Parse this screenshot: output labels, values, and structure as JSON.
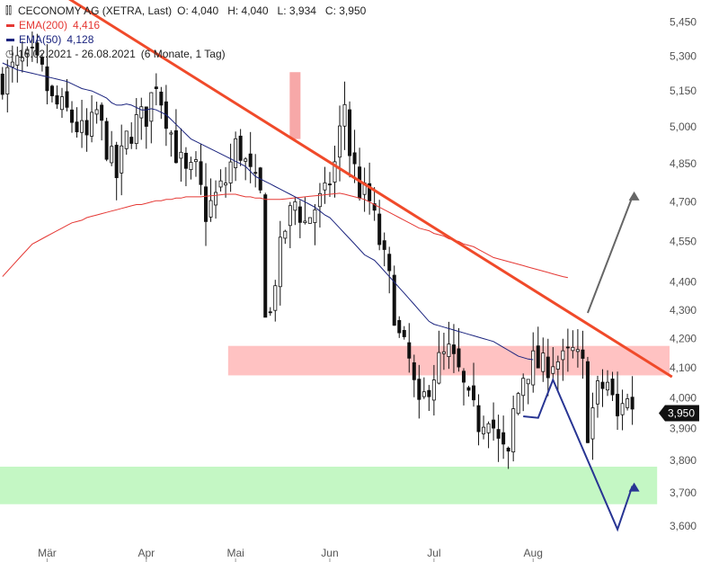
{
  "legend": {
    "title": "CECONOMY AG (XETRA, Last)",
    "ohlc": "O: 4,040   H: 4,040   L: 3,934   C: 3,950",
    "ema200_label": "EMA(200)",
    "ema200_value": "4,416",
    "ema50_label": "EMA(50)",
    "ema50_value": "4,128",
    "period": "16.02.2021 - 26.08.2021",
    "interval": "(6 Monate, 1 Tag)",
    "chart_icon": "candlestick-icon",
    "clock_icon": "clock-icon"
  },
  "colors": {
    "ema200": "#e53935",
    "ema50": "#1a237e",
    "trendline": "#f04a2a",
    "resistance_zone": "#ffc2c2",
    "support_zone": "#c4f7c4",
    "projection_down": "#283593",
    "projection_up": "#666666",
    "badge": "#111111"
  },
  "last_price": "3,950",
  "chart_data": {
    "type": "candlestick",
    "title": "CECONOMY AG (XETRA, Last)",
    "y_ticks": [
      "5,450",
      "5,300",
      "5,150",
      "5,000",
      "4,850",
      "4,700",
      "4,550",
      "4,400",
      "4,300",
      "4,200",
      "4,100",
      "4,000",
      "3,900",
      "3,800",
      "3,700",
      "3,600"
    ],
    "y_tick_values": [
      5.45,
      5.3,
      5.15,
      5.0,
      4.85,
      4.7,
      4.55,
      4.4,
      4.3,
      4.2,
      4.1,
      4.0,
      3.9,
      3.8,
      3.7,
      3.6
    ],
    "y_scale": "log",
    "ylim": [
      3.56,
      5.55
    ],
    "x_ticks": [
      "Mär",
      "Apr",
      "Mai",
      "Jun",
      "Jul",
      "Aug"
    ],
    "x_tick_index": [
      9,
      29,
      47,
      66,
      87,
      107
    ],
    "n_bars": 135,
    "ema200": [
      4.42,
      4.44,
      4.46,
      4.48,
      4.5,
      4.52,
      4.54,
      4.55,
      4.56,
      4.57,
      4.58,
      4.59,
      4.6,
      4.61,
      4.62,
      4.625,
      4.63,
      4.64,
      4.645,
      4.65,
      4.655,
      4.66,
      4.665,
      4.67,
      4.675,
      4.68,
      4.685,
      4.69,
      4.69,
      4.695,
      4.7,
      4.705,
      4.705,
      4.71,
      4.71,
      4.715,
      4.715,
      4.72,
      4.72,
      4.72,
      4.72,
      4.722,
      4.724,
      4.726,
      4.728,
      4.73,
      4.73,
      4.73,
      4.725,
      4.72,
      4.72,
      4.715,
      4.715,
      4.71,
      4.71,
      4.71,
      4.71,
      4.712,
      4.714,
      4.716,
      4.718,
      4.72,
      4.722,
      4.724,
      4.726,
      4.728,
      4.73,
      4.732,
      4.734,
      4.73,
      4.725,
      4.72,
      4.715,
      4.71,
      4.7,
      4.69,
      4.68,
      4.67,
      4.66,
      4.65,
      4.64,
      4.63,
      4.62,
      4.61,
      4.6,
      4.595,
      4.59,
      4.58,
      4.575,
      4.57,
      4.56,
      4.555,
      4.55,
      4.54,
      4.535,
      4.53,
      4.52,
      4.51,
      4.5,
      4.49,
      4.485,
      4.48,
      4.475,
      4.47,
      4.465,
      4.46,
      4.455,
      4.45,
      4.445,
      4.44,
      4.435,
      4.43,
      4.425,
      4.42,
      4.416
    ],
    "ema50": [
      5.27,
      5.26,
      5.25,
      5.24,
      5.235,
      5.23,
      5.225,
      5.22,
      5.215,
      5.21,
      5.205,
      5.2,
      5.195,
      5.19,
      5.18,
      5.17,
      5.16,
      5.155,
      5.15,
      5.14,
      5.13,
      5.12,
      5.1,
      5.09,
      5.09,
      5.095,
      5.09,
      5.08,
      5.07,
      5.07,
      5.075,
      5.07,
      5.06,
      5.05,
      5.03,
      5.01,
      4.99,
      4.97,
      4.95,
      4.94,
      4.93,
      4.92,
      4.91,
      4.9,
      4.89,
      4.88,
      4.87,
      4.86,
      4.85,
      4.84,
      4.82,
      4.8,
      4.79,
      4.78,
      4.77,
      4.76,
      4.75,
      4.74,
      4.73,
      4.72,
      4.71,
      4.7,
      4.69,
      4.68,
      4.665,
      4.65,
      4.64,
      4.62,
      4.6,
      4.58,
      4.56,
      4.54,
      4.52,
      4.5,
      4.49,
      4.48,
      4.46,
      4.44,
      4.42,
      4.4,
      4.38,
      4.36,
      4.34,
      4.32,
      4.3,
      4.28,
      4.26,
      4.25,
      4.245,
      4.24,
      4.235,
      4.23,
      4.225,
      4.22,
      4.215,
      4.21,
      4.205,
      4.2,
      4.195,
      4.19,
      4.18,
      4.17,
      4.16,
      4.15,
      4.14,
      4.135,
      4.13,
      4.128
    ]
  },
  "annotations": {
    "trendline": {
      "from": [
        2,
        5.72
      ],
      "to": [
        135,
        4.07
      ]
    },
    "resistance_zone": {
      "y1": 4.075,
      "y2": 4.175,
      "from": 46,
      "to": 135
    },
    "support_zone": {
      "y1": 3.665,
      "y2": 3.78,
      "from": 0,
      "to": 132
    },
    "pink_candle_highlight": {
      "x": 59,
      "y1": 4.95,
      "y2": 5.23
    },
    "projection_down": [
      [
        105,
        3.94
      ],
      [
        108,
        3.935
      ],
      [
        111,
        4.06
      ],
      [
        124,
        3.59
      ],
      [
        127,
        3.72
      ]
    ],
    "projection_up": [
      [
        118,
        4.29
      ],
      [
        127,
        4.72
      ]
    ]
  }
}
